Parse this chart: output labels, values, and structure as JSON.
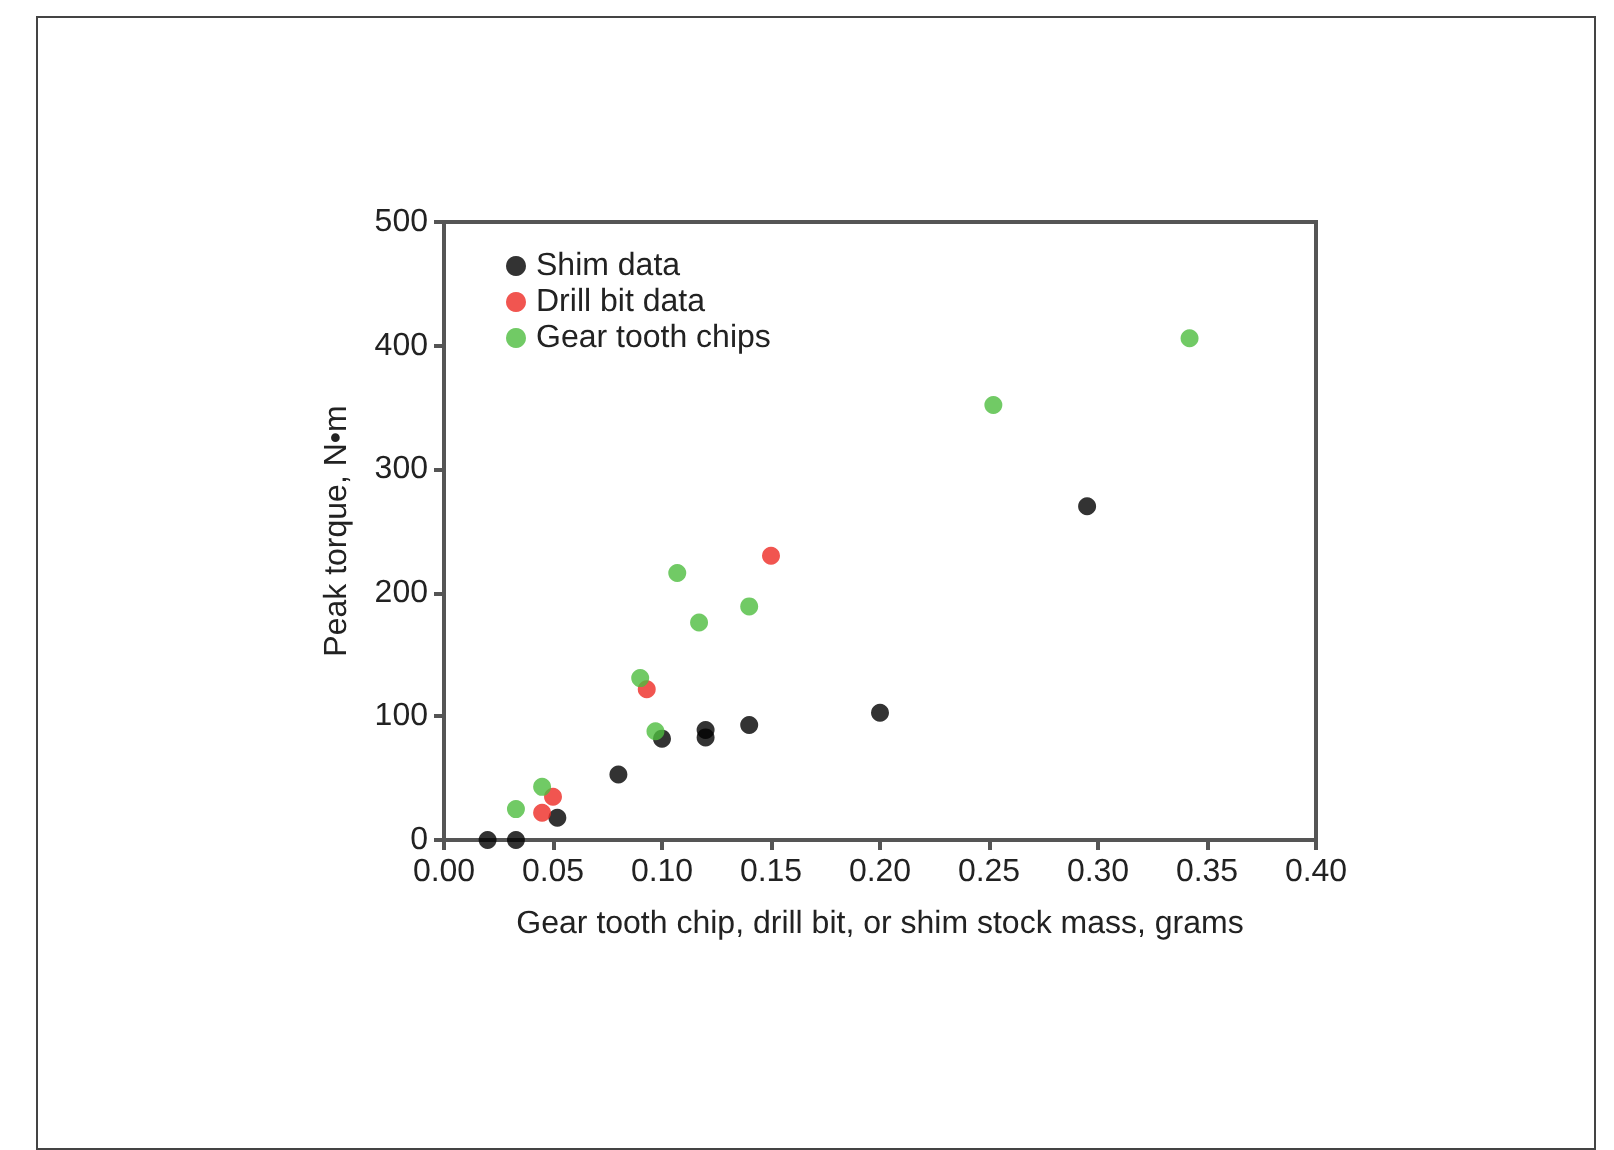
{
  "chart_data": {
    "type": "scatter",
    "xlabel": "Gear tooth chip, drill bit, or shim stock mass, grams",
    "ylabel": "Peak torque, N•m",
    "xlim": [
      0,
      0.4
    ],
    "xticks": [
      {
        "value": 0,
        "label": "0.00"
      },
      {
        "value": 0.05,
        "label": "0.05"
      },
      {
        "value": 0.1,
        "label": "0.10"
      },
      {
        "value": 0.15,
        "label": "0.15"
      },
      {
        "value": 0.2,
        "label": "0.20"
      },
      {
        "value": 0.25,
        "label": "0.25"
      },
      {
        "value": 0.3,
        "label": "0.30"
      },
      {
        "value": 0.35,
        "label": "0.35"
      },
      {
        "value": 0.4,
        "label": "0.40"
      }
    ],
    "ylim": [
      0,
      500
    ],
    "yticks": [
      0,
      100,
      200,
      300,
      400,
      500
    ],
    "grid": false,
    "legend": "top left",
    "marker": "circle",
    "series": [
      {
        "name": "Shim data",
        "color": "#000000",
        "x": [
          0.02,
          0.033,
          0.052,
          0.08,
          0.1,
          0.12,
          0.12,
          0.14,
          0.2,
          0.295
        ],
        "values": [
          0,
          0,
          18,
          53,
          82,
          83,
          89,
          93,
          103,
          270
        ]
      },
      {
        "name": "Drill bit data",
        "color": "#ee2a24",
        "x": [
          0.045,
          0.05,
          0.093,
          0.15
        ],
        "values": [
          22,
          35,
          122,
          230
        ]
      },
      {
        "name": "Gear tooth chips",
        "color": "#4dbd3f",
        "x": [
          0.033,
          0.045,
          0.09,
          0.097,
          0.107,
          0.117,
          0.14,
          0.252,
          0.342
        ],
        "values": [
          25,
          43,
          131,
          88,
          216,
          176,
          189,
          352,
          406
        ]
      }
    ]
  }
}
